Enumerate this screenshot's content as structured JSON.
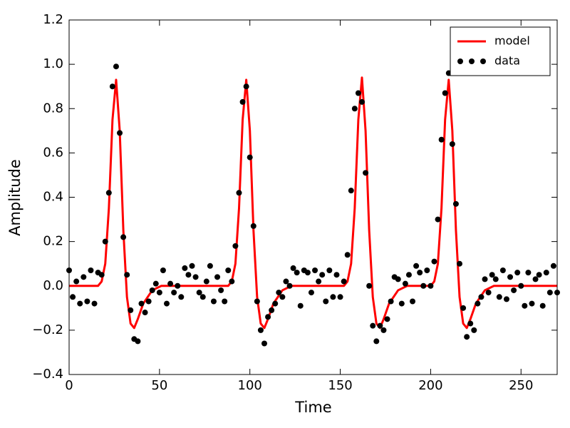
{
  "chart_data": {
    "type": "line",
    "xlabel": "Time",
    "ylabel": "Amplitude",
    "xlim": [
      0,
      270
    ],
    "ylim": [
      -0.4,
      1.2
    ],
    "xticks": [
      0,
      50,
      100,
      150,
      200,
      250
    ],
    "yticks": [
      {
        "value": -0.4,
        "label": "−0.4"
      },
      {
        "value": -0.2,
        "label": "−0.2"
      },
      {
        "value": 0,
        "label": "0.0"
      },
      0.2,
      0.4,
      0.6,
      0.8,
      {
        "value": 1,
        "label": "1.0"
      },
      1.2
    ],
    "legend": "upper right",
    "series": [
      {
        "name": "model",
        "type": "line",
        "color": "#ff0000",
        "x": [
          0,
          16,
          18,
          20,
          22,
          24,
          26,
          28,
          30,
          32,
          34,
          36,
          38,
          41,
          46,
          51,
          88,
          90,
          92,
          94,
          96,
          98,
          100,
          102,
          104,
          106,
          108,
          110,
          113,
          118,
          123,
          152,
          154,
          156,
          158,
          160,
          162,
          164,
          166,
          168,
          170,
          172,
          174,
          177,
          182,
          187,
          200,
          202,
          204,
          206,
          208,
          210,
          212,
          214,
          216,
          218,
          220,
          222,
          225,
          230,
          235,
          270
        ],
        "values": [
          0,
          0,
          0.02,
          0.1,
          0.35,
          0.75,
          0.93,
          0.7,
          0.25,
          -0.05,
          -0.17,
          -0.19,
          -0.15,
          -0.08,
          -0.02,
          0,
          0,
          0.02,
          0.1,
          0.35,
          0.75,
          0.93,
          0.7,
          0.25,
          -0.05,
          -0.17,
          -0.19,
          -0.15,
          -0.08,
          -0.02,
          0,
          0,
          0.02,
          0.1,
          0.35,
          0.75,
          0.94,
          0.7,
          0.25,
          -0.05,
          -0.17,
          -0.19,
          -0.15,
          -0.08,
          -0.02,
          0,
          0,
          0.02,
          0.1,
          0.35,
          0.75,
          0.93,
          0.7,
          0.25,
          -0.05,
          -0.17,
          -0.19,
          -0.15,
          -0.08,
          -0.02,
          0,
          0
        ]
      },
      {
        "name": "data",
        "type": "scatter",
        "color": "#000000",
        "x": [
          0,
          2,
          4,
          6,
          8,
          10,
          12,
          14,
          16,
          18,
          20,
          22,
          24,
          26,
          28,
          30,
          32,
          34,
          36,
          38,
          40,
          42,
          44,
          46,
          48,
          50,
          52,
          54,
          56,
          58,
          60,
          62,
          64,
          66,
          68,
          70,
          72,
          74,
          76,
          78,
          80,
          82,
          84,
          86,
          88,
          90,
          92,
          94,
          96,
          98,
          100,
          102,
          104,
          106,
          108,
          110,
          112,
          114,
          116,
          118,
          120,
          122,
          124,
          126,
          128,
          130,
          132,
          134,
          136,
          138,
          140,
          142,
          144,
          146,
          148,
          150,
          152,
          154,
          156,
          158,
          160,
          162,
          164,
          166,
          168,
          170,
          172,
          174,
          176,
          178,
          180,
          182,
          184,
          186,
          188,
          190,
          192,
          194,
          196,
          198,
          200,
          202,
          204,
          206,
          208,
          210,
          212,
          214,
          216,
          218,
          220,
          222,
          224,
          226,
          228,
          230,
          232,
          234,
          236,
          238,
          240,
          242,
          244,
          246,
          248,
          250,
          252,
          254,
          256,
          258,
          260,
          262,
          264,
          266,
          268,
          270
        ],
        "values": [
          0.07,
          -0.05,
          0.02,
          -0.08,
          0.04,
          -0.07,
          0.07,
          -0.08,
          0.06,
          0.05,
          0.2,
          0.42,
          0.9,
          0.99,
          0.69,
          0.22,
          0.05,
          -0.11,
          -0.24,
          -0.25,
          -0.08,
          -0.12,
          -0.07,
          -0.02,
          0.01,
          -0.03,
          0.07,
          -0.08,
          0.01,
          -0.03,
          0,
          -0.05,
          0.08,
          0.05,
          0.09,
          0.04,
          -0.03,
          -0.05,
          0.02,
          0.09,
          -0.07,
          0.04,
          -0.02,
          -0.07,
          0.07,
          0.02,
          0.18,
          0.42,
          0.83,
          0.9,
          0.58,
          0.27,
          -0.07,
          -0.2,
          -0.26,
          -0.14,
          -0.11,
          -0.08,
          -0.03,
          -0.05,
          0.02,
          0,
          0.08,
          0.06,
          -0.09,
          0.07,
          0.06,
          -0.03,
          0.07,
          0.02,
          0.05,
          -0.07,
          0.07,
          -0.05,
          0.05,
          -0.05,
          0.02,
          0.14,
          0.43,
          0.8,
          0.87,
          0.83,
          0.51,
          0,
          -0.18,
          -0.25,
          -0.18,
          -0.2,
          -0.15,
          -0.07,
          0.04,
          0.03,
          -0.08,
          0.01,
          0.05,
          -0.07,
          0.09,
          0.06,
          0,
          0.07,
          0,
          0.11,
          0.3,
          0.66,
          0.87,
          0.96,
          0.64,
          0.37,
          0.1,
          -0.1,
          -0.23,
          -0.17,
          -0.2,
          -0.08,
          -0.05,
          0.03,
          -0.03,
          0.05,
          0.03,
          -0.05,
          0.07,
          -0.06,
          0.04,
          -0.02,
          0.06,
          0,
          -0.09,
          0.06,
          -0.08,
          0.03,
          0.05,
          -0.09,
          0.06,
          -0.03,
          0.09,
          -0.03
        ]
      }
    ]
  }
}
